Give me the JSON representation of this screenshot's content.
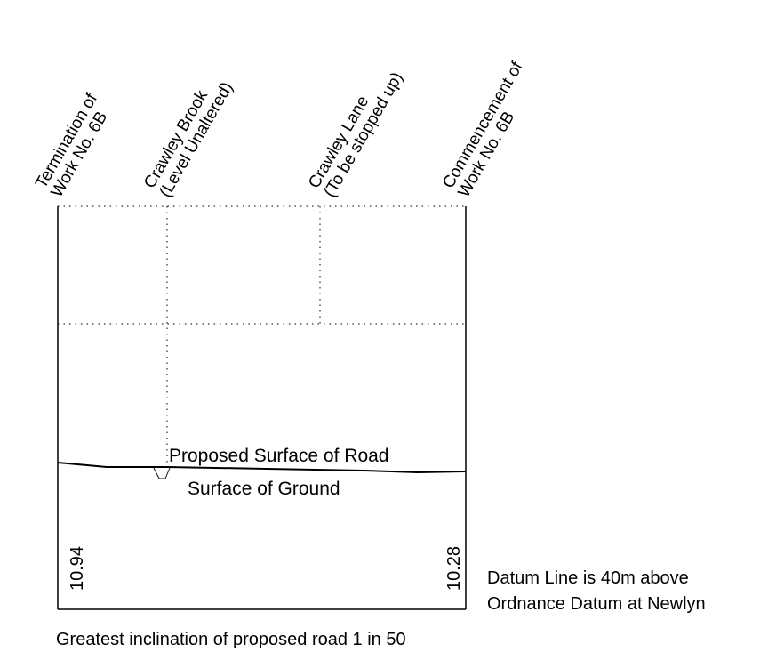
{
  "section_labels": {
    "termination": [
      "Termination of",
      "Work No. 6B"
    ],
    "brook": [
      "Crawley Brook",
      "(Level Unaltered)"
    ],
    "lane": [
      "Crawley Lane",
      "(To be stopped up)"
    ],
    "commencement": [
      "Commencement of",
      "Work No. 6B"
    ]
  },
  "road_label": "Proposed Surface of Road",
  "ground_label": "Surface of Ground",
  "levels": {
    "left": "10.94",
    "right": "10.28"
  },
  "datum_note": [
    "Datum Line is 40m above",
    "Ordnance Datum at Newlyn"
  ],
  "inclination_note": "Greatest inclination of proposed road 1 in 50"
}
